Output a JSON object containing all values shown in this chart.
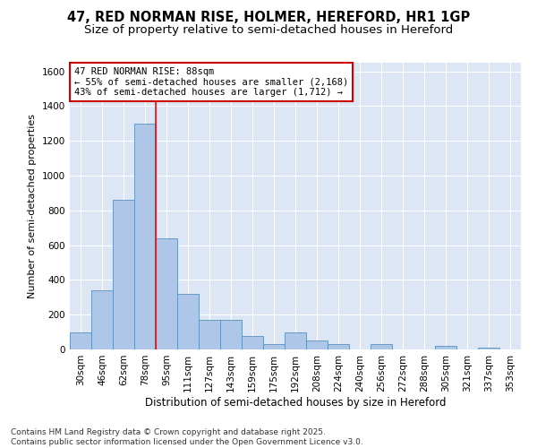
{
  "title_line1": "47, RED NORMAN RISE, HOLMER, HEREFORD, HR1 1GP",
  "title_line2": "Size of property relative to semi-detached houses in Hereford",
  "xlabel": "Distribution of semi-detached houses by size in Hereford",
  "ylabel": "Number of semi-detached properties",
  "categories": [
    "30sqm",
    "46sqm",
    "62sqm",
    "78sqm",
    "95sqm",
    "111sqm",
    "127sqm",
    "143sqm",
    "159sqm",
    "175sqm",
    "192sqm",
    "208sqm",
    "224sqm",
    "240sqm",
    "256sqm",
    "272sqm",
    "288sqm",
    "305sqm",
    "321sqm",
    "337sqm",
    "353sqm"
  ],
  "values": [
    100,
    340,
    860,
    1300,
    640,
    320,
    170,
    170,
    75,
    30,
    100,
    50,
    30,
    0,
    30,
    0,
    0,
    20,
    0,
    10,
    0
  ],
  "bar_color": "#aec6e8",
  "bar_edge_color": "#5a8fc0",
  "red_line_x": 3.5,
  "red_line_label": "47 RED NORMAN RISE: 88sqm",
  "annotation_line2": "← 55% of semi-detached houses are smaller (2,168)",
  "annotation_line3": "43% of semi-detached houses are larger (1,712) →",
  "box_color": "#cc0000",
  "ylim": [
    0,
    1650
  ],
  "yticks": [
    0,
    200,
    400,
    600,
    800,
    1000,
    1200,
    1400,
    1600
  ],
  "background_color": "#dce6f5",
  "footer_line1": "Contains HM Land Registry data © Crown copyright and database right 2025.",
  "footer_line2": "Contains public sector information licensed under the Open Government Licence v3.0.",
  "title_fontsize": 10.5,
  "subtitle_fontsize": 9.5,
  "annotation_fontsize": 7.5,
  "ylabel_fontsize": 8,
  "xlabel_fontsize": 8.5,
  "tick_fontsize": 7.5,
  "footer_fontsize": 6.5
}
